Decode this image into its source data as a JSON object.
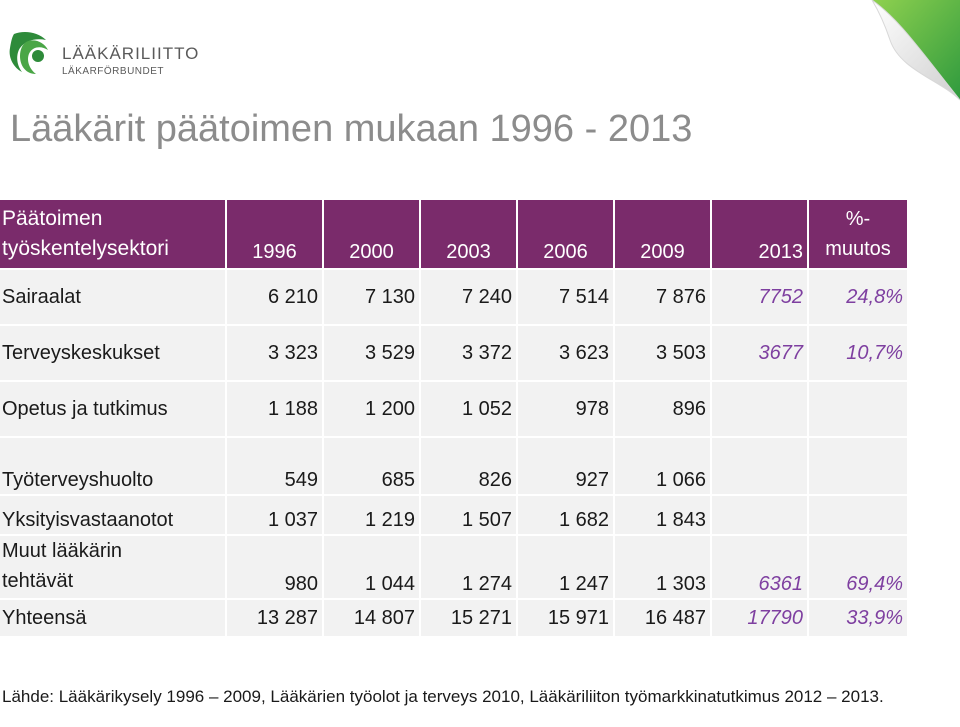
{
  "logo": {
    "line1": "LÄÄKÄRILIITTO",
    "line2": "LÄKARFÖRBUNDET"
  },
  "slide": {
    "title": "Lääkärit päätoimen mukaan 1996 - 2013"
  },
  "table": {
    "header": {
      "sector_line1": "Päätoimen",
      "sector_line2": "työskentelysektori",
      "years": [
        "1996",
        "2000",
        "2003",
        "2006",
        "2009",
        "2013"
      ],
      "change_line1": "%-",
      "change_line2": "muutos"
    },
    "rows": [
      {
        "label": "Sairaalat",
        "values": [
          "6 210",
          "7 130",
          "7 240",
          "7 514",
          "7 876"
        ],
        "v2013": "7752",
        "change": "24,8%"
      },
      {
        "label": "Terveyskeskukset",
        "values": [
          "3 323",
          "3 529",
          "3 372",
          "3 623",
          "3 503"
        ],
        "v2013": "3677",
        "change": "10,7%"
      },
      {
        "label": "Opetus ja tutkimus",
        "values": [
          "1 188",
          "1 200",
          "1 052",
          "978",
          "896"
        ],
        "v2013": "",
        "change": ""
      },
      {
        "label": "Työterveyshuolto",
        "values": [
          "549",
          "685",
          "826",
          "927",
          "1 066"
        ],
        "v2013": "",
        "change": ""
      },
      {
        "label": "Yksityisvastaanotot",
        "values": [
          "1 037",
          "1 219",
          "1 507",
          "1 682",
          "1 843"
        ],
        "v2013": "",
        "change": ""
      },
      {
        "label_line1": "Muut lääkärin",
        "label_line2": "tehtävät",
        "values": [
          "980",
          "1 044",
          "1 274",
          "1 247",
          "1 303"
        ],
        "v2013": "6361",
        "change": "69,4%"
      },
      {
        "label": "Yhteensä",
        "values": [
          "13 287",
          "14 807",
          "15 271",
          "15 971",
          "16 487"
        ],
        "v2013": "17790",
        "change": "33,9%"
      }
    ]
  },
  "source": "Lähde: Lääkärikysely  1996 – 2009, Lääkärien työolot ja terveys 2010,  Lääkäriliiton työmarkkinatutkimus 2012 – 2013.",
  "colors": {
    "header_bg": "#7a2b6b",
    "italic_values": "#7e3fa0",
    "row_bg": "#f2f2f2",
    "title": "#8c8c8c",
    "logo_green": "#2e8b3a"
  },
  "icons": {
    "logo": "doctors-union-logo-icon",
    "corner": "page-curl-icon"
  }
}
